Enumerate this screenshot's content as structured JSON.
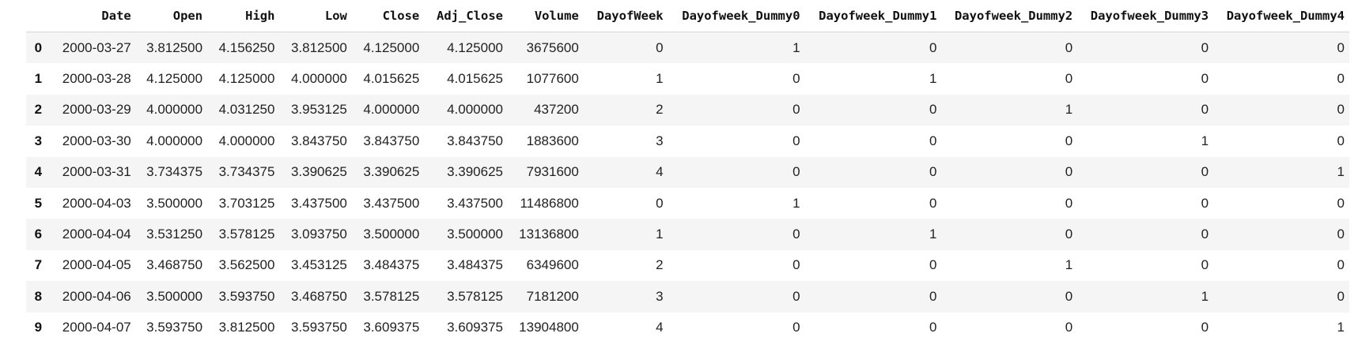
{
  "dataframe": {
    "index_header": "",
    "columns": [
      "Date",
      "Open",
      "High",
      "Low",
      "Close",
      "Adj_Close",
      "Volume",
      "DayofWeek",
      "Dayofweek_Dummy0",
      "Dayofweek_Dummy1",
      "Dayofweek_Dummy2",
      "Dayofweek_Dummy3",
      "Dayofweek_Dummy4"
    ],
    "rows": [
      {
        "index": "0",
        "cells": [
          "2000-03-27",
          "3.812500",
          "4.156250",
          "3.812500",
          "4.125000",
          "4.125000",
          "3675600",
          "0",
          "1",
          "0",
          "0",
          "0",
          "0"
        ]
      },
      {
        "index": "1",
        "cells": [
          "2000-03-28",
          "4.125000",
          "4.125000",
          "4.000000",
          "4.015625",
          "4.015625",
          "1077600",
          "1",
          "0",
          "1",
          "0",
          "0",
          "0"
        ]
      },
      {
        "index": "2",
        "cells": [
          "2000-03-29",
          "4.000000",
          "4.031250",
          "3.953125",
          "4.000000",
          "4.000000",
          "437200",
          "2",
          "0",
          "0",
          "1",
          "0",
          "0"
        ]
      },
      {
        "index": "3",
        "cells": [
          "2000-03-30",
          "4.000000",
          "4.000000",
          "3.843750",
          "3.843750",
          "3.843750",
          "1883600",
          "3",
          "0",
          "0",
          "0",
          "1",
          "0"
        ]
      },
      {
        "index": "4",
        "cells": [
          "2000-03-31",
          "3.734375",
          "3.734375",
          "3.390625",
          "3.390625",
          "3.390625",
          "7931600",
          "4",
          "0",
          "0",
          "0",
          "0",
          "1"
        ]
      },
      {
        "index": "5",
        "cells": [
          "2000-04-03",
          "3.500000",
          "3.703125",
          "3.437500",
          "3.437500",
          "3.437500",
          "11486800",
          "0",
          "1",
          "0",
          "0",
          "0",
          "0"
        ]
      },
      {
        "index": "6",
        "cells": [
          "2000-04-04",
          "3.531250",
          "3.578125",
          "3.093750",
          "3.500000",
          "3.500000",
          "13136800",
          "1",
          "0",
          "1",
          "0",
          "0",
          "0"
        ]
      },
      {
        "index": "7",
        "cells": [
          "2000-04-05",
          "3.468750",
          "3.562500",
          "3.453125",
          "3.484375",
          "3.484375",
          "6349600",
          "2",
          "0",
          "0",
          "1",
          "0",
          "0"
        ]
      },
      {
        "index": "8",
        "cells": [
          "2000-04-06",
          "3.500000",
          "3.593750",
          "3.468750",
          "3.578125",
          "3.578125",
          "7181200",
          "3",
          "0",
          "0",
          "0",
          "1",
          "0"
        ]
      },
      {
        "index": "9",
        "cells": [
          "2000-04-07",
          "3.593750",
          "3.812500",
          "3.593750",
          "3.609375",
          "3.609375",
          "13904800",
          "4",
          "0",
          "0",
          "0",
          "0",
          "1"
        ]
      }
    ]
  }
}
